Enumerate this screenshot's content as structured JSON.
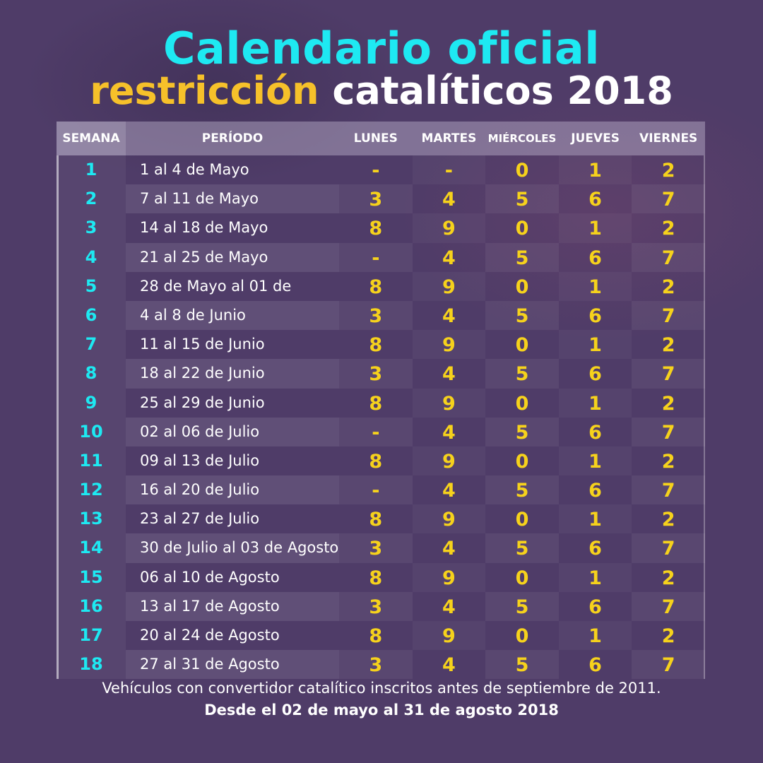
{
  "title": "Calendario oficial",
  "subtitle": {
    "part1": "restricción",
    "part2": "catalíticos 2018"
  },
  "headers": {
    "semana": "SEMANA",
    "periodo": "PERÍODO",
    "lunes": "LUNES",
    "martes": "MARTES",
    "miercoles": "MIÉRCOLES",
    "jueves": "JUEVES",
    "viernes": "VIERNES"
  },
  "rows": [
    {
      "semana": "1",
      "periodo": "1 al 4 de Mayo",
      "lunes": "-",
      "martes": "-",
      "miercoles": "0",
      "jueves": "1",
      "viernes": "2"
    },
    {
      "semana": "2",
      "periodo": "7 al 11 de Mayo",
      "lunes": "3",
      "martes": "4",
      "miercoles": "5",
      "jueves": "6",
      "viernes": "7"
    },
    {
      "semana": "3",
      "periodo": "14 al 18 de Mayo",
      "lunes": "8",
      "martes": "9",
      "miercoles": "0",
      "jueves": "1",
      "viernes": "2"
    },
    {
      "semana": "4",
      "periodo": "21 al 25 de Mayo",
      "lunes": "-",
      "martes": "4",
      "miercoles": "5",
      "jueves": "6",
      "viernes": "7"
    },
    {
      "semana": "5",
      "periodo": "28 de Mayo al 01 de",
      "lunes": "8",
      "martes": "9",
      "miercoles": "0",
      "jueves": "1",
      "viernes": "2"
    },
    {
      "semana": "6",
      "periodo": "4 al 8 de Junio",
      "lunes": "3",
      "martes": "4",
      "miercoles": "5",
      "jueves": "6",
      "viernes": "7"
    },
    {
      "semana": "7",
      "periodo": "11 al 15 de Junio",
      "lunes": "8",
      "martes": "9",
      "miercoles": "0",
      "jueves": "1",
      "viernes": "2"
    },
    {
      "semana": "8",
      "periodo": "18 al 22 de Junio",
      "lunes": "3",
      "martes": "4",
      "miercoles": "5",
      "jueves": "6",
      "viernes": "7"
    },
    {
      "semana": "9",
      "periodo": "25 al 29 de Junio",
      "lunes": "8",
      "martes": "9",
      "miercoles": "0",
      "jueves": "1",
      "viernes": "2"
    },
    {
      "semana": "10",
      "periodo": "02 al 06 de Julio",
      "lunes": "-",
      "martes": "4",
      "miercoles": "5",
      "jueves": "6",
      "viernes": "7"
    },
    {
      "semana": "11",
      "periodo": "09 al 13 de Julio",
      "lunes": "8",
      "martes": "9",
      "miercoles": "0",
      "jueves": "1",
      "viernes": "2"
    },
    {
      "semana": "12",
      "periodo": "16 al 20 de Julio",
      "lunes": "-",
      "martes": "4",
      "miercoles": "5",
      "jueves": "6",
      "viernes": "7"
    },
    {
      "semana": "13",
      "periodo": "23 al 27 de Julio",
      "lunes": "8",
      "martes": "9",
      "miercoles": "0",
      "jueves": "1",
      "viernes": "2"
    },
    {
      "semana": "14",
      "periodo": "30 de Julio al 03 de Agosto",
      "lunes": "3",
      "martes": "4",
      "miercoles": "5",
      "jueves": "6",
      "viernes": "7"
    },
    {
      "semana": "15",
      "periodo": "06 al 10 de Agosto",
      "lunes": "8",
      "martes": "9",
      "miercoles": "0",
      "jueves": "1",
      "viernes": "2"
    },
    {
      "semana": "16",
      "periodo": "13 al 17 de Agosto",
      "lunes": "3",
      "martes": "4",
      "miercoles": "5",
      "jueves": "6",
      "viernes": "7"
    },
    {
      "semana": "17",
      "periodo": "20 al 24 de Agosto",
      "lunes": "8",
      "martes": "9",
      "miercoles": "0",
      "jueves": "1",
      "viernes": "2"
    },
    {
      "semana": "18",
      "periodo": "27 al 31 de Agosto",
      "lunes": "3",
      "martes": "4",
      "miercoles": "5",
      "jueves": "6",
      "viernes": "7"
    }
  ],
  "footer": {
    "line1": "Vehículos con convertidor catalítico inscritos antes de septiembre de 2011.",
    "line2": "Desde el 02 de mayo al 31 de agosto 2018"
  },
  "colors": {
    "background": "#4f3c68",
    "title": "#1ee9f2",
    "accent_yellow": "#f6c12a",
    "digits": "#f6d21c",
    "week_numbers": "#1ee9f2"
  }
}
